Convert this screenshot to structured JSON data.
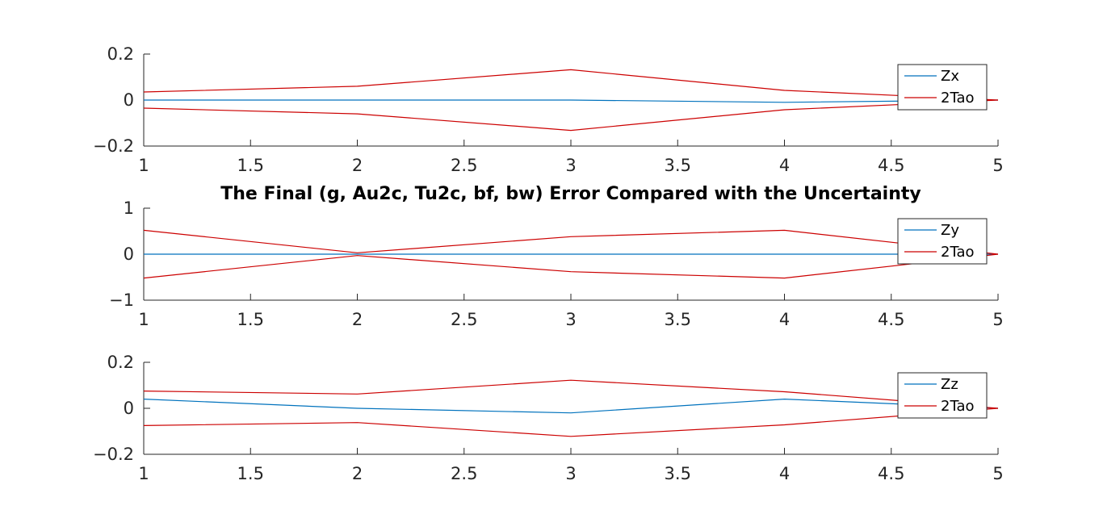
{
  "chart_data": [
    {
      "type": "line",
      "title": "",
      "xlabel": "",
      "ylabel": "",
      "xlim": [
        1,
        5
      ],
      "ylim": [
        -0.2,
        0.2
      ],
      "xticks": [
        1,
        1.5,
        2,
        2.5,
        3,
        3.5,
        4,
        4.5,
        5
      ],
      "yticks": [
        -0.2,
        0,
        0.2
      ],
      "xtick_labels": [
        "1",
        "1.5",
        "2",
        "2.5",
        "3",
        "3.5",
        "4",
        "4.5",
        "5"
      ],
      "ytick_labels": [
        "−0.2",
        "0",
        "0.2"
      ],
      "legend": {
        "position": "top-right"
      },
      "x": [
        1,
        2,
        3,
        4,
        5
      ],
      "series": [
        {
          "name": "Zx",
          "color": "#0072BD",
          "values": [
            0.0,
            0.0,
            0.0,
            -0.01,
            0.0
          ],
          "legend": true
        },
        {
          "name": "2Tao",
          "color": "#CC0000",
          "values": [
            0.035,
            0.06,
            0.132,
            0.042,
            0.0
          ],
          "legend": true
        },
        {
          "name": "",
          "color": "#CC0000",
          "values": [
            -0.035,
            -0.06,
            -0.132,
            -0.042,
            0.0
          ],
          "legend": false
        }
      ]
    },
    {
      "type": "line",
      "title": "The Final (g, Au2c, Tu2c, bf, bw) Error Compared with the Uncertainty",
      "xlabel": "",
      "ylabel": "",
      "xlim": [
        1,
        5
      ],
      "ylim": [
        -1,
        1
      ],
      "xticks": [
        1,
        1.5,
        2,
        2.5,
        3,
        3.5,
        4,
        4.5,
        5
      ],
      "yticks": [
        -1,
        0,
        1
      ],
      "xtick_labels": [
        "1",
        "1.5",
        "2",
        "2.5",
        "3",
        "3.5",
        "4",
        "4.5",
        "5"
      ],
      "ytick_labels": [
        "−1",
        "0",
        "1"
      ],
      "legend": {
        "position": "top-right"
      },
      "x": [
        1,
        2,
        3,
        4,
        5
      ],
      "series": [
        {
          "name": "Zy",
          "color": "#0072BD",
          "values": [
            0.0,
            0.0,
            0.0,
            0.0,
            0.0
          ],
          "legend": true
        },
        {
          "name": "2Tao",
          "color": "#CC0000",
          "values": [
            0.52,
            0.03,
            0.38,
            0.52,
            0.0
          ],
          "legend": true
        },
        {
          "name": "",
          "color": "#CC0000",
          "values": [
            -0.52,
            -0.03,
            -0.38,
            -0.52,
            0.0
          ],
          "legend": false
        }
      ]
    },
    {
      "type": "line",
      "title": "",
      "xlabel": "",
      "ylabel": "",
      "xlim": [
        1,
        5
      ],
      "ylim": [
        -0.2,
        0.2
      ],
      "xticks": [
        1,
        1.5,
        2,
        2.5,
        3,
        3.5,
        4,
        4.5,
        5
      ],
      "yticks": [
        -0.2,
        0,
        0.2
      ],
      "xtick_labels": [
        "1",
        "1.5",
        "2",
        "2.5",
        "3",
        "3.5",
        "4",
        "4.5",
        "5"
      ],
      "ytick_labels": [
        "−0.2",
        "0",
        "0.2"
      ],
      "legend": {
        "position": "top-right"
      },
      "x": [
        1,
        2,
        3,
        4,
        5
      ],
      "series": [
        {
          "name": "Zz",
          "color": "#0072BD",
          "values": [
            0.04,
            0.0,
            -0.02,
            0.04,
            0.0
          ],
          "legend": true
        },
        {
          "name": "2Tao",
          "color": "#CC0000",
          "values": [
            0.075,
            0.062,
            0.122,
            0.072,
            0.0
          ],
          "legend": true
        },
        {
          "name": "",
          "color": "#CC0000",
          "values": [
            -0.075,
            -0.062,
            -0.122,
            -0.072,
            0.0
          ],
          "legend": false
        }
      ]
    }
  ]
}
